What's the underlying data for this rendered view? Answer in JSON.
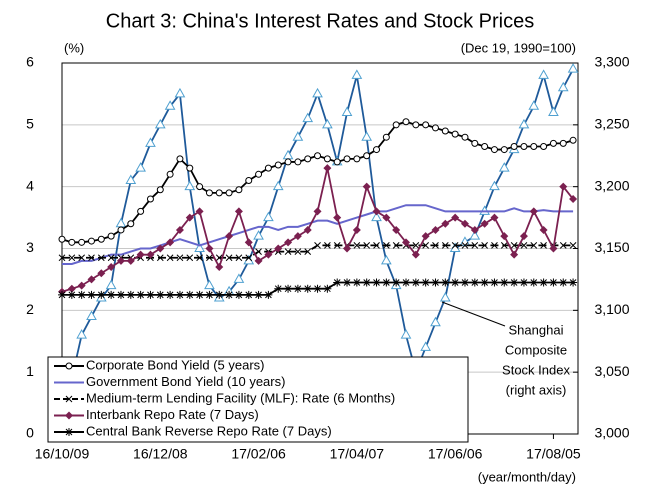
{
  "chart_data": {
    "type": "line",
    "title": "Chart 3: China's Interest Rates and Stock Prices",
    "ylabel": "(%)",
    "y2label": "(Dec 19, 1990=100)",
    "xlabel": "(year/month/day)",
    "annotation": [
      "Shanghai",
      "Composite",
      "Stock Index",
      "(right axis)"
    ],
    "categories": [
      "16/10/09",
      null,
      null,
      null,
      null,
      null,
      null,
      null,
      null,
      null,
      "16/12/08",
      null,
      null,
      null,
      null,
      null,
      null,
      null,
      null,
      null,
      "17/02/06",
      null,
      null,
      null,
      null,
      null,
      null,
      null,
      null,
      null,
      "17/04/07",
      null,
      null,
      null,
      null,
      null,
      null,
      null,
      null,
      null,
      "17/06/06",
      null,
      null,
      null,
      null,
      null,
      null,
      null,
      null,
      null,
      "17/08/05",
      null,
      null
    ],
    "ylim": [
      0,
      6
    ],
    "yticks": [
      0,
      1,
      2,
      3,
      4,
      5,
      6
    ],
    "y2lim": [
      3000,
      3300
    ],
    "y2ticks": [
      {
        "value": 3000,
        "label": "3,000"
      },
      {
        "value": 3050,
        "label": "3,050"
      },
      {
        "value": 3100,
        "label": "3,100"
      },
      {
        "value": 3150,
        "label": "3,150"
      },
      {
        "value": 3200,
        "label": "3,200"
      },
      {
        "value": 3250,
        "label": "3,250"
      },
      {
        "value": 3300,
        "label": "3,300"
      }
    ],
    "grid": true,
    "series": [
      {
        "name": "Corporate Bond Yield (5 years)",
        "color": "#000000",
        "marker": "circle",
        "values": [
          3.15,
          3.1,
          3.1,
          3.12,
          3.15,
          3.2,
          3.3,
          3.4,
          3.6,
          3.8,
          3.95,
          4.2,
          4.45,
          4.3,
          4.0,
          3.9,
          3.9,
          3.9,
          3.95,
          4.1,
          4.2,
          4.3,
          4.35,
          4.4,
          4.4,
          4.45,
          4.5,
          4.45,
          4.4,
          4.45,
          4.45,
          4.5,
          4.6,
          4.8,
          5.0,
          5.05,
          5.0,
          5.0,
          4.95,
          4.9,
          4.85,
          4.8,
          4.7,
          4.65,
          4.6,
          4.6,
          4.65,
          4.65,
          4.65,
          4.65,
          4.7,
          4.7,
          4.75
        ]
      },
      {
        "name": "Government Bond Yield (10 years)",
        "color": "#6666cc",
        "marker": "none",
        "values": [
          2.75,
          2.75,
          2.8,
          2.8,
          2.85,
          2.9,
          2.9,
          2.95,
          3.0,
          3.0,
          3.05,
          3.1,
          3.15,
          3.1,
          3.05,
          3.1,
          3.15,
          3.2,
          3.25,
          3.3,
          3.35,
          3.35,
          3.3,
          3.35,
          3.35,
          3.4,
          3.45,
          3.45,
          3.4,
          3.45,
          3.5,
          3.55,
          3.6,
          3.6,
          3.65,
          3.7,
          3.7,
          3.7,
          3.65,
          3.6,
          3.6,
          3.6,
          3.6,
          3.6,
          3.6,
          3.6,
          3.65,
          3.6,
          3.6,
          3.62,
          3.6,
          3.6,
          3.6
        ]
      },
      {
        "name": "Medium-term Lending Facility (MLF): Rate (6 Months)",
        "color": "#000000",
        "marker": "x",
        "dash": true,
        "values": [
          2.85,
          2.85,
          2.85,
          2.85,
          2.85,
          2.85,
          2.85,
          2.85,
          2.85,
          2.85,
          2.85,
          2.85,
          2.85,
          2.85,
          2.85,
          2.85,
          2.85,
          2.85,
          2.85,
          2.85,
          2.95,
          2.95,
          2.95,
          2.95,
          2.95,
          2.95,
          3.05,
          3.05,
          3.05,
          3.05,
          3.05,
          3.05,
          3.05,
          3.05,
          3.05,
          3.05,
          3.05,
          3.05,
          3.05,
          3.05,
          3.05,
          3.05,
          3.05,
          3.05,
          3.05,
          3.05,
          3.05,
          3.05,
          3.05,
          3.05,
          3.05,
          3.05,
          3.05
        ]
      },
      {
        "name": "Interbank Repo Rate (7 Days)",
        "color": "#7b2050",
        "marker": "diamond",
        "values": [
          2.3,
          2.35,
          2.4,
          2.5,
          2.6,
          2.7,
          2.8,
          2.8,
          2.9,
          2.9,
          3.0,
          3.1,
          3.3,
          3.5,
          3.6,
          3.0,
          2.7,
          3.2,
          3.6,
          3.1,
          2.8,
          2.9,
          3.0,
          3.1,
          3.2,
          3.3,
          3.6,
          4.3,
          3.5,
          3.0,
          3.3,
          4.0,
          3.6,
          3.5,
          3.3,
          3.1,
          2.9,
          3.2,
          3.3,
          3.4,
          3.5,
          3.4,
          3.3,
          3.4,
          3.5,
          3.2,
          2.9,
          3.2,
          3.6,
          3.3,
          3.0,
          4.0,
          3.8
        ]
      },
      {
        "name": "Central Bank Reverse Repo Rate (7 Days)",
        "color": "#000000",
        "marker": "star",
        "values": [
          2.25,
          2.25,
          2.25,
          2.25,
          2.25,
          2.25,
          2.25,
          2.25,
          2.25,
          2.25,
          2.25,
          2.25,
          2.25,
          2.25,
          2.25,
          2.25,
          2.25,
          2.25,
          2.25,
          2.25,
          2.25,
          2.25,
          2.35,
          2.35,
          2.35,
          2.35,
          2.35,
          2.35,
          2.45,
          2.45,
          2.45,
          2.45,
          2.45,
          2.45,
          2.45,
          2.45,
          2.45,
          2.45,
          2.45,
          2.45,
          2.45,
          2.45,
          2.45,
          2.45,
          2.45,
          2.45,
          2.45,
          2.45,
          2.45,
          2.45,
          2.45,
          2.45,
          2.45
        ]
      },
      {
        "name": "Shanghai Composite Stock Index",
        "color": "#1f5a9a",
        "marker": "triangle",
        "axis": "y2",
        "legend": false,
        "values": [
          3055,
          3045,
          3080,
          3095,
          3110,
          3120,
          3170,
          3205,
          3215,
          3235,
          3250,
          3265,
          3275,
          3200,
          3150,
          3120,
          3110,
          3115,
          3125,
          3140,
          3160,
          3175,
          3200,
          3225,
          3240,
          3255,
          3275,
          3250,
          3220,
          3260,
          3290,
          3240,
          3175,
          3140,
          3120,
          3080,
          3050,
          3070,
          3090,
          3110,
          3150,
          3155,
          3160,
          3180,
          3200,
          3215,
          3230,
          3250,
          3265,
          3290,
          3260,
          3280,
          3295
        ]
      }
    ]
  }
}
